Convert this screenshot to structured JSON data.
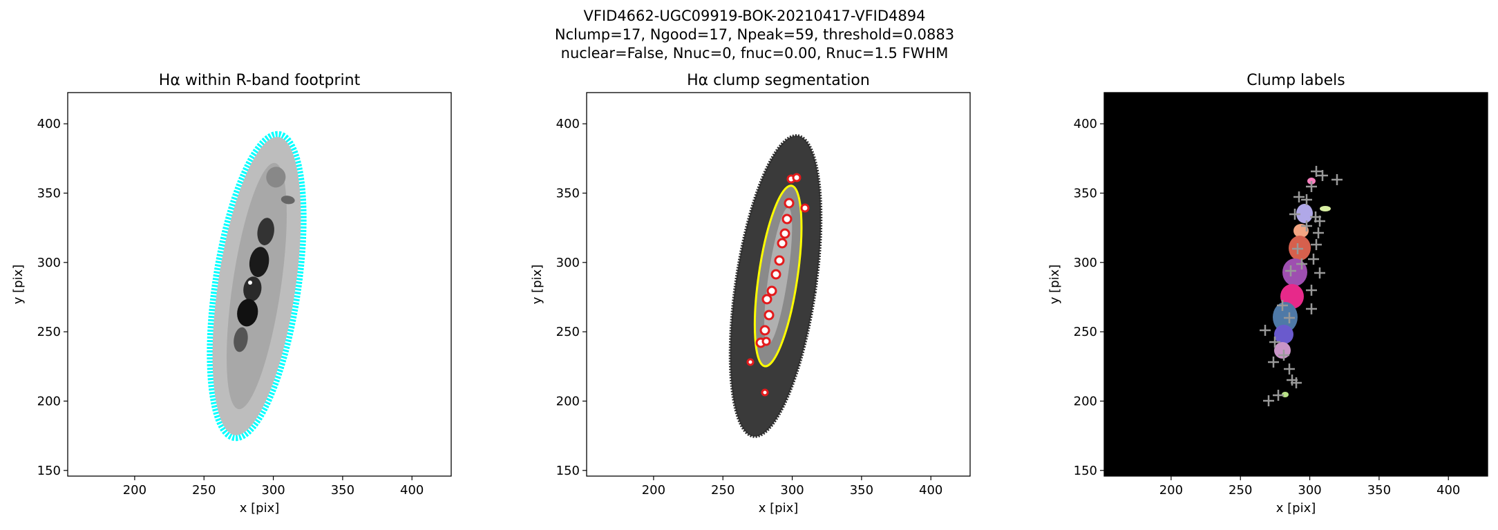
{
  "figure": {
    "title_lines": [
      "VFID4662-UGC09919-BOK-20210417-VFID4894",
      "Nclump=17, Ngood=17, Npeak=59, threshold=0.0883",
      "nuclear=False, Nnuc=0, fnuc=0.00, Rnuc=1.5 FWHM"
    ]
  },
  "chart_data": [
    {
      "type": "image",
      "title": "Hα within R-band footprint",
      "xlabel": "x [pix]",
      "ylabel": "y [pix]",
      "xlim": [
        151.7,
        428.3
      ],
      "ylim": [
        145.9,
        422.5
      ],
      "xticks": [
        200,
        250,
        300,
        350,
        400
      ],
      "yticks": [
        150,
        200,
        250,
        300,
        350,
        400
      ],
      "background": "#ffffff"
    },
    {
      "type": "image",
      "title": "Hα clump segmentation",
      "xlabel": "x [pix]",
      "ylabel": "y [pix]",
      "xlim": [
        151.7,
        428.3
      ],
      "ylim": [
        145.9,
        422.5
      ],
      "xticks": [
        200,
        250,
        300,
        350,
        400
      ],
      "yticks": [
        150,
        200,
        250,
        300,
        350,
        400
      ],
      "background": "#ffffff"
    },
    {
      "type": "image",
      "title": "Clump labels",
      "xlabel": "x [pix]",
      "ylabel": "y [pix]",
      "xlim": [
        151.7,
        428.3
      ],
      "ylim": [
        145.9,
        422.5
      ],
      "xticks": [
        200,
        250,
        300,
        350,
        400
      ],
      "yticks": [
        150,
        200,
        250,
        300,
        350,
        400
      ],
      "background": "#000000"
    }
  ]
}
